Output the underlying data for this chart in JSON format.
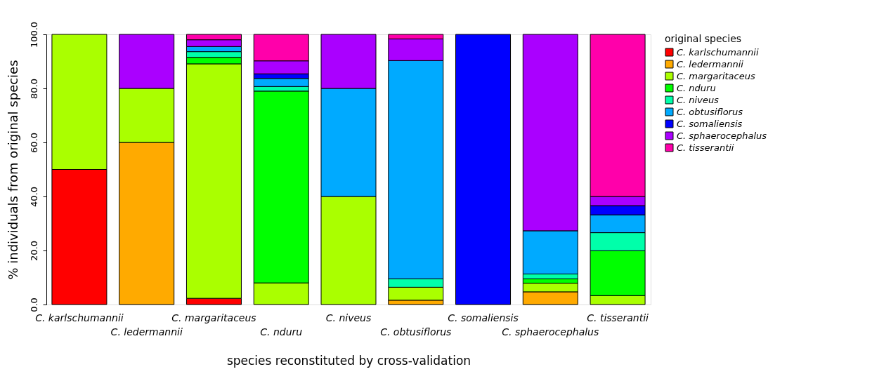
{
  "chart_data": {
    "type": "bar",
    "stacked": true,
    "xlabel": "species reconstituted by cross-validation",
    "ylabel": "% individuals from original species",
    "legend_title": "original species",
    "legend": "top right",
    "grid": false,
    "categories": [
      "C. karlschumannii",
      "C. ledermannii",
      "C. margaritaceus",
      "C. nduru",
      "C. niveus",
      "C. obtusiflorus",
      "C. somaliensis",
      "C. sphaerocephalus",
      "C. tisserantii"
    ],
    "ylim": [
      0,
      100
    ],
    "yticks": [
      {
        "value": 0,
        "label": "0.0"
      },
      {
        "value": 20,
        "label": "20.0"
      },
      {
        "value": 40,
        "label": "40.0"
      },
      {
        "value": 60,
        "label": "60.0"
      },
      {
        "value": 80,
        "label": "80.0"
      },
      {
        "value": 100,
        "label": "100.0"
      }
    ],
    "series": [
      {
        "name": "C. karlschumannii",
        "color": "#ff0000",
        "values": [
          50,
          null,
          2.3,
          null,
          null,
          null,
          null,
          null,
          null
        ]
      },
      {
        "name": "C. ledermannii",
        "color": "#ffaa00",
        "values": [
          null,
          60,
          null,
          null,
          null,
          1.6,
          null,
          4.7,
          null
        ]
      },
      {
        "name": "C. margaritaceus",
        "color": "#aaff00",
        "values": [
          50,
          20,
          86.8,
          8,
          40,
          4.8,
          null,
          3.2,
          3.3
        ]
      },
      {
        "name": "C. nduru",
        "color": "#00ff00",
        "values": [
          null,
          null,
          2.4,
          71,
          null,
          null,
          null,
          1.6,
          16.6
        ]
      },
      {
        "name": "C. niveus",
        "color": "#00ffaa",
        "values": [
          null,
          null,
          2.1,
          1.7,
          null,
          3.1,
          null,
          1.8,
          6.7
        ]
      },
      {
        "name": "C. obtusiflorus",
        "color": "#00aaff",
        "values": [
          null,
          null,
          1.9,
          3,
          40,
          80.8,
          null,
          16,
          6.6
        ]
      },
      {
        "name": "C. somaliensis",
        "color": "#0000ff",
        "values": [
          null,
          null,
          null,
          1.7,
          null,
          null,
          100,
          null,
          3.4
        ]
      },
      {
        "name": "C. sphaerocephalus",
        "color": "#aa00ff",
        "values": [
          null,
          20,
          2.5,
          4.8,
          20,
          8,
          null,
          72.7,
          3.4
        ]
      },
      {
        "name": "C. tisserantii",
        "color": "#ff00aa",
        "values": [
          null,
          null,
          2,
          9.8,
          null,
          1.7,
          null,
          null,
          60
        ]
      }
    ]
  }
}
